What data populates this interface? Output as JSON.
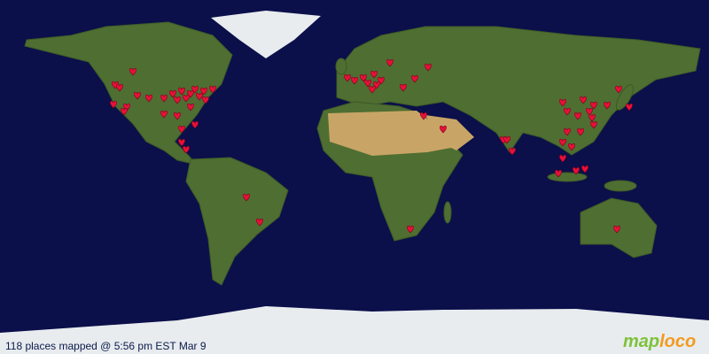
{
  "caption": "118 places mapped @ 5:56 pm EST Mar 9",
  "logo": {
    "first": "map",
    "second": "loco"
  }
}
